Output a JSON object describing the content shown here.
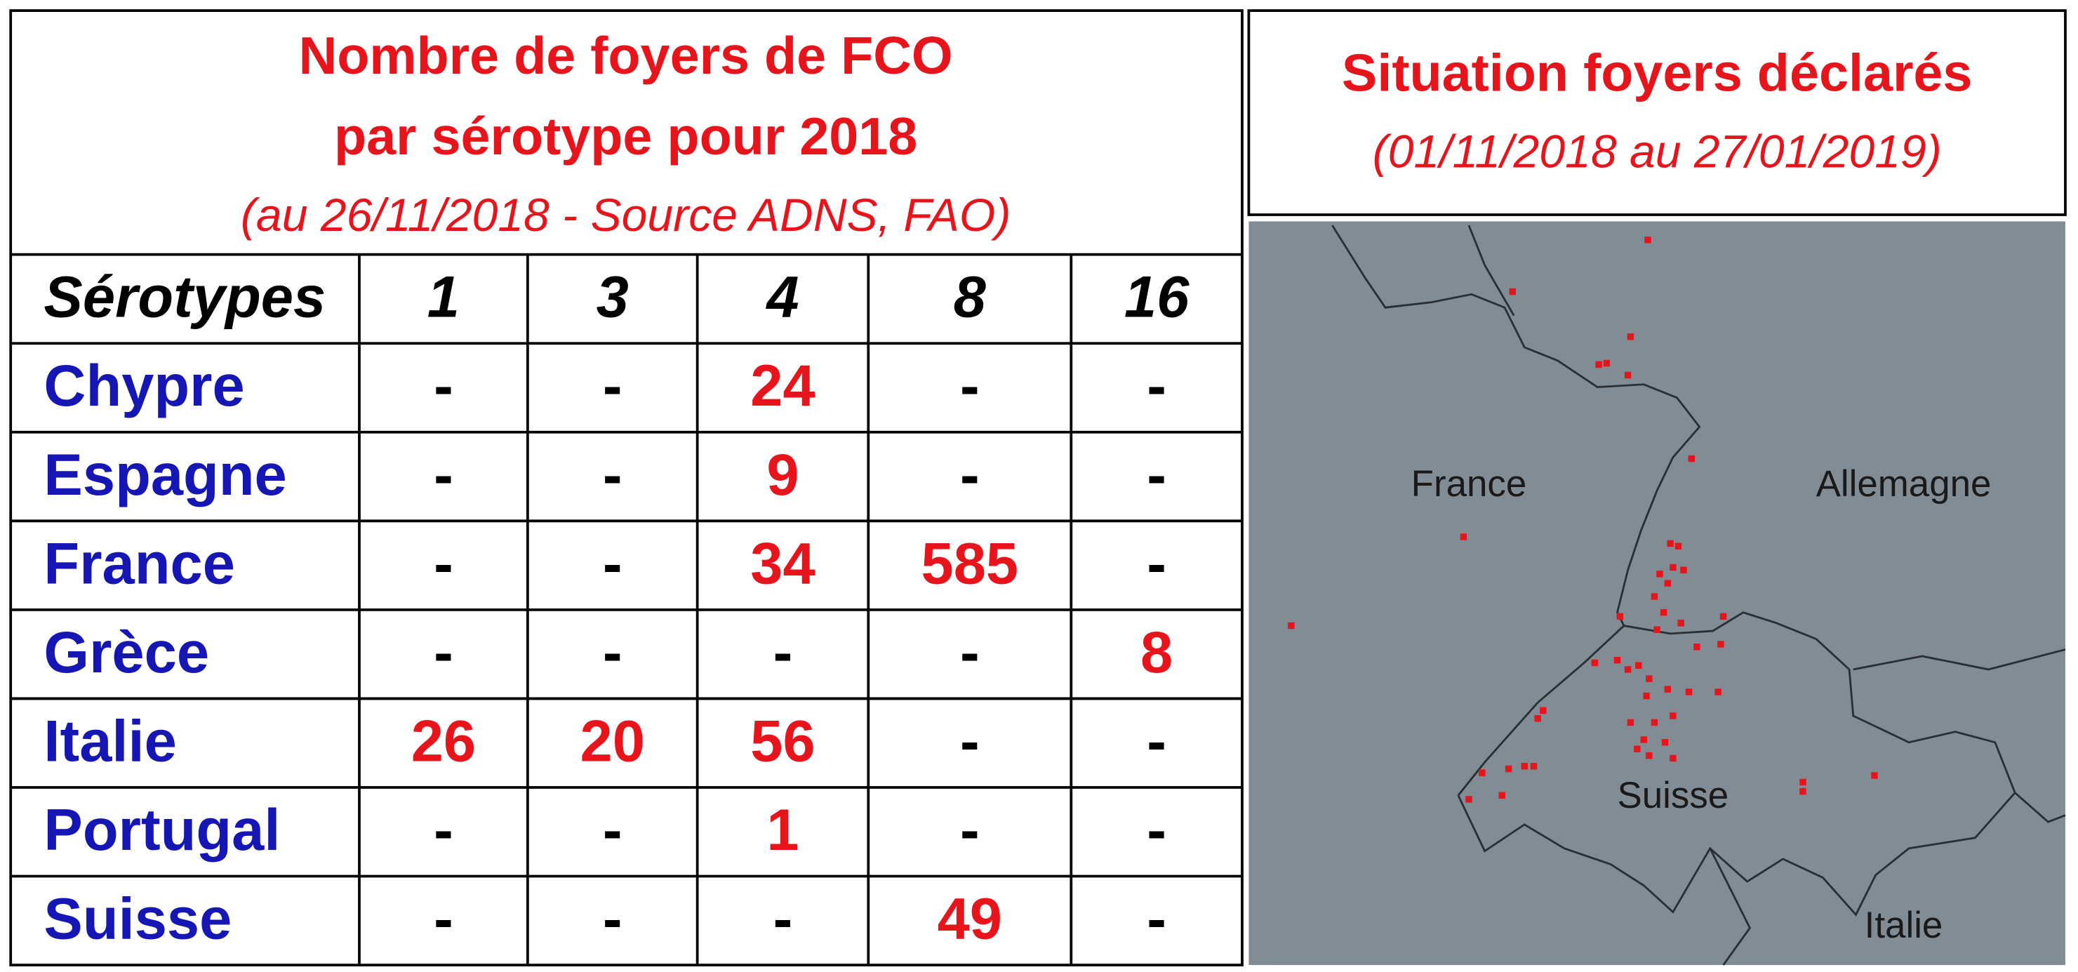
{
  "table": {
    "title": [
      "Nombre de foyers de FCO",
      "par sérotype pour 2018"
    ],
    "subtitle": "(au 26/11/2018 - Source ADNS, FAO)",
    "header": [
      "Sérotypes",
      1,
      3,
      4,
      8,
      16
    ],
    "rows": [
      [
        "Chypre",
        "-",
        "-",
        24,
        "-",
        "-"
      ],
      [
        "Espagne",
        "-",
        "-",
        9,
        "-",
        "-"
      ],
      [
        "France",
        "-",
        "-",
        34,
        585,
        "-"
      ],
      [
        "Grèce",
        "-",
        "-",
        "-",
        "-",
        8
      ],
      [
        "Italie",
        26,
        20,
        56,
        "-",
        "-"
      ],
      [
        "Portugal",
        "-",
        "-",
        1,
        "-",
        "-"
      ],
      [
        "Suisse",
        "-",
        "-",
        "-",
        49,
        "-"
      ]
    ]
  },
  "map": {
    "title": "Situation foyers déclarés",
    "subtitle": "(01/11/2018 au 27/01/2019)",
    "labels": [
      "France",
      "Allemagne",
      "Suisse",
      "Italie"
    ]
  }
}
